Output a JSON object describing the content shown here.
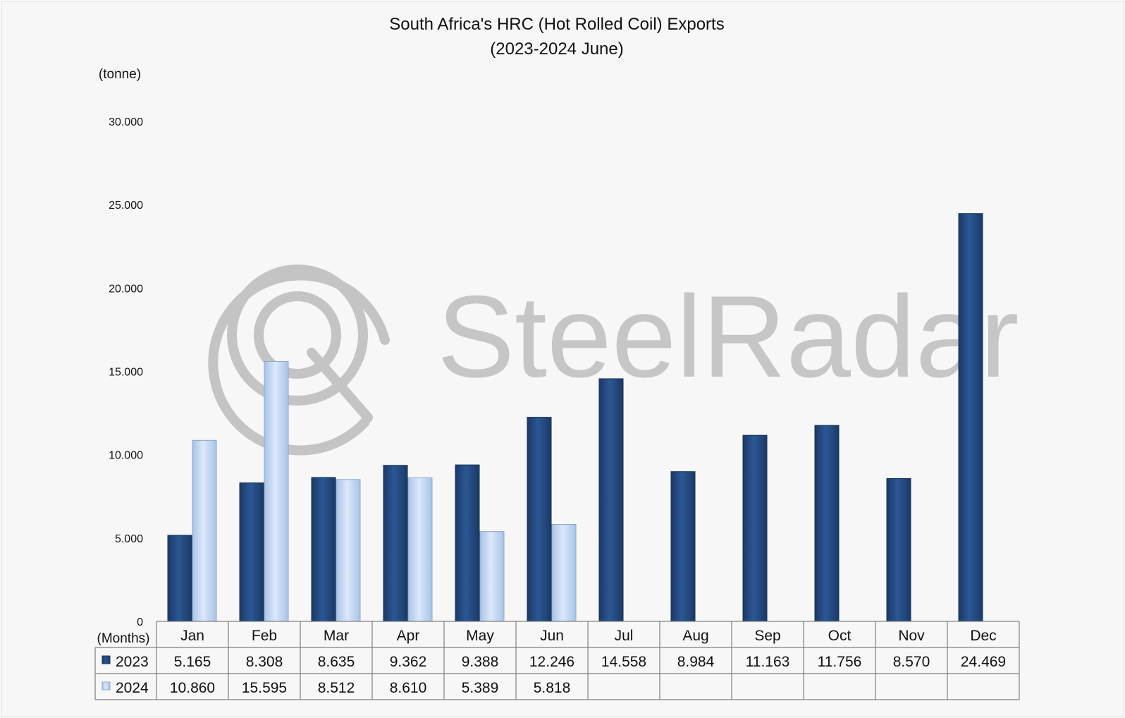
{
  "chart_data": {
    "type": "bar",
    "title": "South Africa's HRC (Hot Rolled Coil) Exports",
    "subtitle": "(2023-2024 June)",
    "ylabel": "(tonne)",
    "xlabel": "(Months)",
    "ylim": [
      0,
      30000
    ],
    "yticks": [
      0,
      5000,
      10000,
      15000,
      20000,
      25000,
      30000
    ],
    "ytick_labels": [
      "0",
      "5.000",
      "10.000",
      "15.000",
      "20.000",
      "25.000",
      "30.000"
    ],
    "grid": false,
    "legend": "data table rows, left",
    "categories": [
      "Jan",
      "Feb",
      "Mar",
      "Apr",
      "May",
      "Jun",
      "Jul",
      "Aug",
      "Sep",
      "Oct",
      "Nov",
      "Dec"
    ],
    "series": [
      {
        "name": "2023",
        "color": "#264f8a",
        "values": [
          5165,
          8308,
          8635,
          9362,
          9388,
          12246,
          14558,
          8984,
          11163,
          11756,
          8570,
          24469
        ],
        "labels": [
          "5.165",
          "8.308",
          "8.635",
          "9.362",
          "9.388",
          "12.246",
          "14.558",
          "8.984",
          "11.163",
          "11.756",
          "8.570",
          "24.469"
        ]
      },
      {
        "name": "2024",
        "color": "#c9dcf5",
        "values": [
          10860,
          15595,
          8512,
          8610,
          5389,
          5818,
          null,
          null,
          null,
          null,
          null,
          null
        ],
        "labels": [
          "10.860",
          "15.595",
          "8.512",
          "8.610",
          "5.389",
          "5.818",
          "",
          "",
          "",
          "",
          "",
          ""
        ]
      }
    ]
  },
  "watermark": {
    "text": "SteelRadar"
  }
}
